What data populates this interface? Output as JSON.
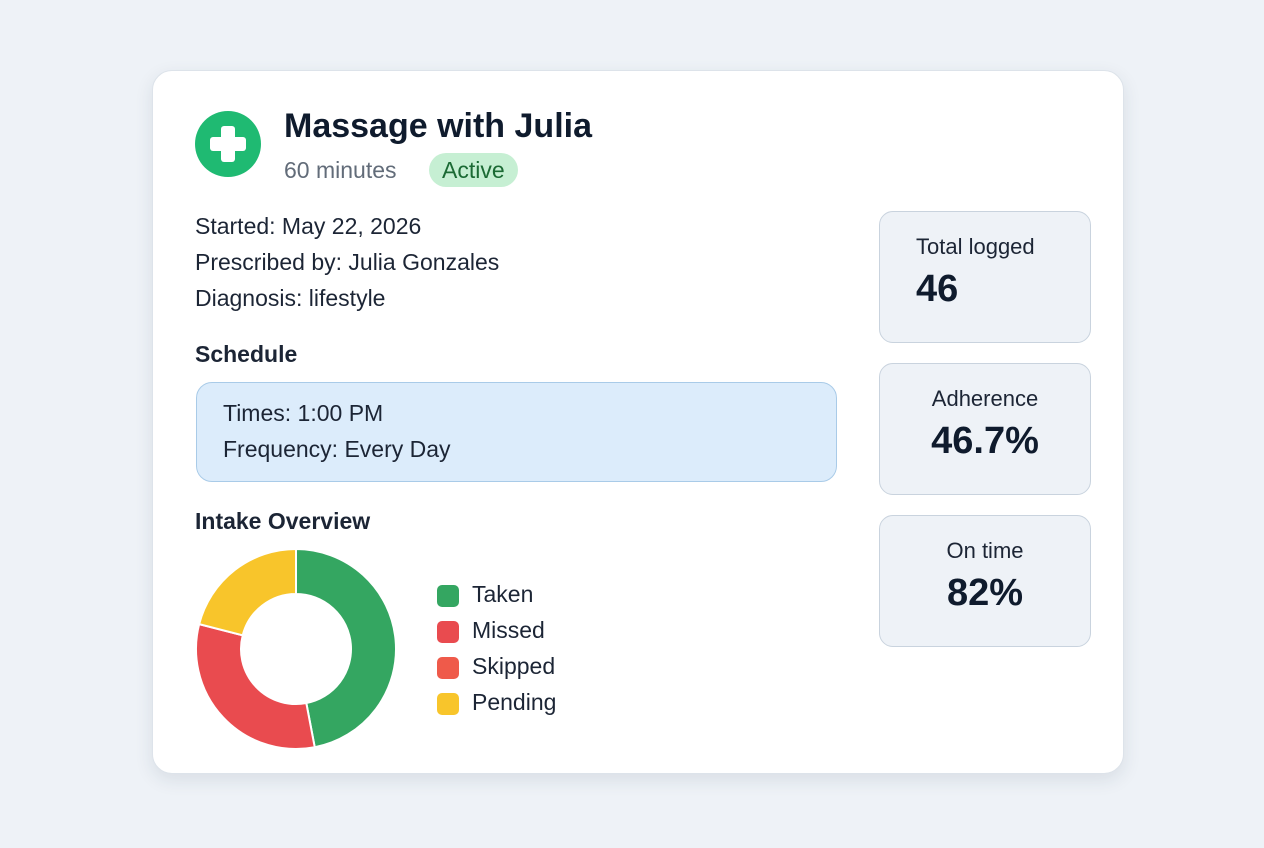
{
  "header": {
    "icon": "medical-cross-icon",
    "icon_color": "#1fba72",
    "title": "Massage with Julia",
    "duration": "60 minutes",
    "status": "Active"
  },
  "details": {
    "started": "Started: May 22, 2026",
    "prescribed_by": "Prescribed by: Julia Gonzales",
    "diagnosis": "Diagnosis: lifestyle"
  },
  "schedule": {
    "heading": "Schedule",
    "times": "Times: 1:00 PM",
    "frequency": "Frequency: Every Day"
  },
  "intake": {
    "heading": "Intake Overview",
    "legend": [
      {
        "label": "Taken",
        "color": "#34a661"
      },
      {
        "label": "Missed",
        "color": "#e94b4f"
      },
      {
        "label": "Skipped",
        "color": "#ef5a4a"
      },
      {
        "label": "Pending",
        "color": "#f8c52b"
      }
    ]
  },
  "chart_data": {
    "type": "pie",
    "donut": true,
    "title": "Intake Overview",
    "categories": [
      "Taken",
      "Missed",
      "Skipped",
      "Pending"
    ],
    "values": [
      47,
      32,
      0,
      21
    ],
    "colors": [
      "#34a661",
      "#e94b4f",
      "#ef5a4a",
      "#f8c52b"
    ],
    "legend_position": "right"
  },
  "stats": [
    {
      "label": "Total logged",
      "value": "46"
    },
    {
      "label": "Adherence",
      "value": "46.7%"
    },
    {
      "label": "On time",
      "value": "82%"
    }
  ]
}
